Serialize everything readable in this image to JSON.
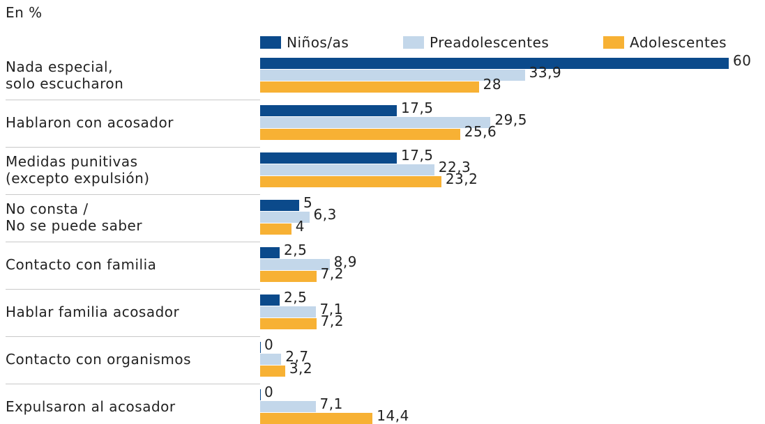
{
  "chart_data": {
    "type": "bar",
    "orientation": "horizontal",
    "subtitle": "En %",
    "categories": [
      "Nada especial,\nsolo escucharon",
      "Hablaron con acosador",
      "Medidas punitivas\n(excepto expulsión)",
      "No consta /\nNo se puede saber",
      "Contacto con familia",
      "Hablar familia acosador",
      "Contacto con organismos",
      "Expulsaron al acosador"
    ],
    "series": [
      {
        "name": "Niños/as",
        "color": "#0b4a8b",
        "values": [
          60,
          17.5,
          17.5,
          5,
          2.5,
          2.5,
          0,
          0
        ],
        "value_labels": [
          "60",
          "17,5",
          "17,5",
          "5",
          "2,5",
          "2,5",
          "0",
          "0"
        ]
      },
      {
        "name": "Preadolescentes",
        "color": "#c3d7ea",
        "values": [
          33.9,
          29.5,
          22.3,
          6.3,
          8.9,
          7.1,
          2.7,
          7.1
        ],
        "value_labels": [
          "33,9",
          "29,5",
          "22,3",
          "6,3",
          "8,9",
          "7,1",
          "2,7",
          "7,1"
        ]
      },
      {
        "name": "Adolescentes",
        "color": "#f7b134",
        "values": [
          28,
          25.6,
          23.2,
          4,
          7.2,
          7.2,
          3.2,
          14.4
        ],
        "value_labels": [
          "28",
          "25,6",
          "23,2",
          "4",
          "7,2",
          "7,2",
          "3,2",
          "14,4"
        ]
      }
    ]
  }
}
